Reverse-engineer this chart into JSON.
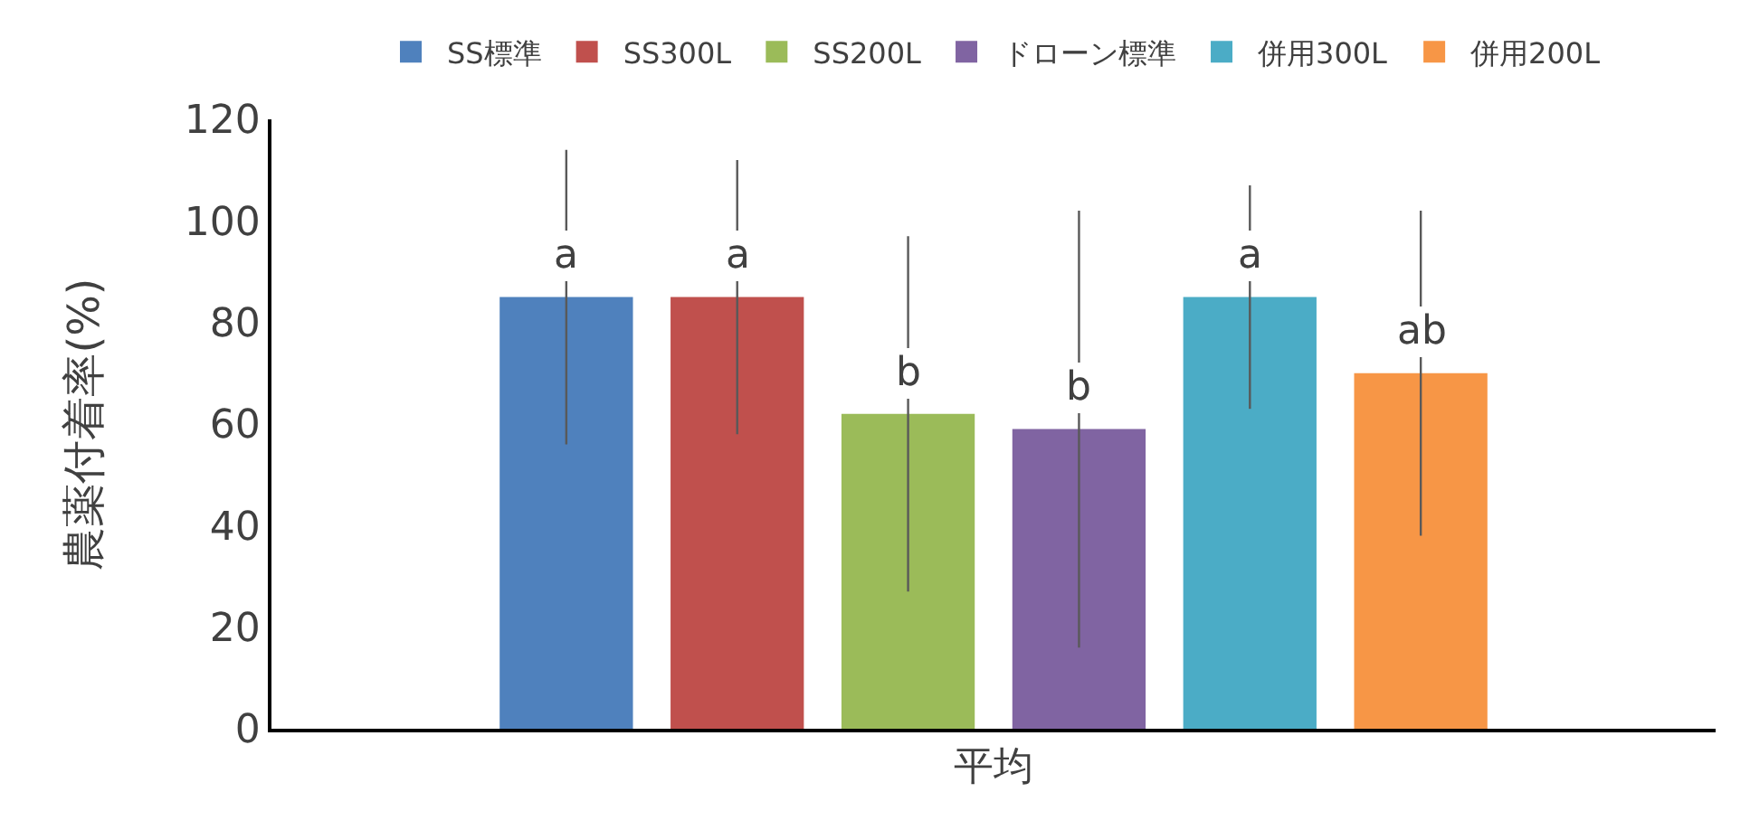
{
  "chart_data": {
    "type": "bar",
    "ylabel": "農薬付着率(%)",
    "categories": [
      "平均"
    ],
    "series": [
      {
        "name": "SS標準",
        "color": "#4f81bd",
        "values": [
          85
        ],
        "errors": [
          29
        ]
      },
      {
        "name": "SS300L",
        "color": "#c0504d",
        "values": [
          85
        ],
        "errors": [
          27
        ]
      },
      {
        "name": "SS200L",
        "color": "#9bbb59",
        "values": [
          62
        ],
        "errors": [
          35
        ]
      },
      {
        "name": "ドローン標準",
        "color": "#8064a2",
        "values": [
          59
        ],
        "errors": [
          43
        ]
      },
      {
        "name": "併用300L",
        "color": "#4bacc6",
        "values": [
          85
        ],
        "errors": [
          22
        ]
      },
      {
        "name": "併用200L",
        "color": "#f79646",
        "values": [
          70
        ],
        "errors": [
          32
        ]
      }
    ],
    "annotations": [
      "a",
      "a",
      "b",
      "b",
      "a",
      "ab"
    ],
    "ylim": [
      0,
      120
    ],
    "yticks": [
      0,
      20,
      40,
      60,
      80,
      100,
      120
    ],
    "grid": false,
    "legend": "top"
  }
}
